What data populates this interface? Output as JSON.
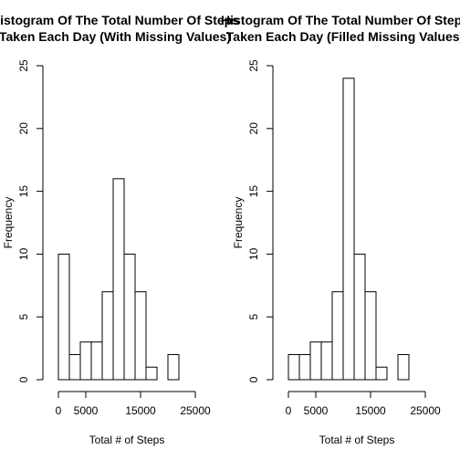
{
  "chart_data": [
    {
      "type": "bar",
      "title_line1": "Histogram Of The Total Number Of Steps",
      "title_line2": "Taken Each Day (With Missing Values)",
      "xlabel": "Total # of Steps",
      "ylabel": "Frequency",
      "xlim": [
        0,
        25000
      ],
      "ylim": [
        0,
        25
      ],
      "x_ticks": [
        "0",
        "5000",
        "15000",
        "25000"
      ],
      "x_tick_values": [
        0,
        5000,
        15000,
        25000
      ],
      "y_ticks": [
        "0",
        "5",
        "10",
        "15",
        "20",
        "25"
      ],
      "y_tick_values": [
        0,
        5,
        10,
        15,
        20,
        25
      ],
      "bin_width": 2000,
      "bin_starts": [
        0,
        2000,
        4000,
        6000,
        8000,
        10000,
        12000,
        14000,
        16000,
        18000,
        20000
      ],
      "values": [
        10,
        2,
        3,
        3,
        7,
        16,
        10,
        7,
        1,
        0,
        2
      ],
      "grid": false,
      "legend": "none"
    },
    {
      "type": "bar",
      "title_line1": "Histogram Of The Total Number Of Steps",
      "title_line2": "Taken Each Day (Filled Missing Values)",
      "xlabel": "Total # of Steps",
      "ylabel": "Frequency",
      "xlim": [
        0,
        25000
      ],
      "ylim": [
        0,
        25
      ],
      "x_ticks": [
        "0",
        "5000",
        "15000",
        "25000"
      ],
      "x_tick_values": [
        0,
        5000,
        15000,
        25000
      ],
      "y_ticks": [
        "0",
        "5",
        "10",
        "15",
        "20",
        "25"
      ],
      "y_tick_values": [
        0,
        5,
        10,
        15,
        20,
        25
      ],
      "bin_width": 2000,
      "bin_starts": [
        0,
        2000,
        4000,
        6000,
        8000,
        10000,
        12000,
        14000,
        16000,
        18000,
        20000
      ],
      "values": [
        2,
        2,
        3,
        3,
        7,
        24,
        10,
        7,
        1,
        0,
        2
      ],
      "grid": false,
      "legend": "none"
    }
  ],
  "colors": {
    "bar_fill": "#ffffff",
    "bar_stroke": "#000000",
    "background": "#ffffff"
  }
}
